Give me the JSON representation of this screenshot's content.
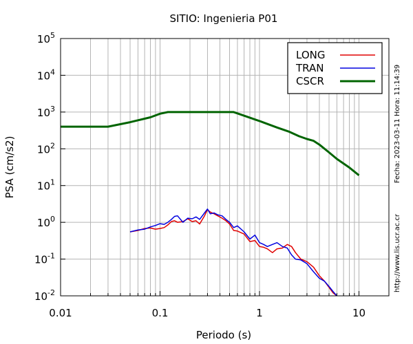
{
  "chart_data": {
    "type": "line",
    "title": "SITIO: Ingenieria P01",
    "xlabel": "Periodo (s)",
    "ylabel": "PSA (cm/s2)",
    "x_scale": "log",
    "y_scale": "log",
    "xlim": [
      0.01,
      20
    ],
    "ylim": [
      0.01,
      100000
    ],
    "grid": true,
    "legend_position": "top-right",
    "x_ticks": [
      {
        "value": 0.01,
        "label": "0.01"
      },
      {
        "value": 0.1,
        "label": "0.1"
      },
      {
        "value": 1,
        "label": "1"
      },
      {
        "value": 10,
        "label": "10"
      }
    ],
    "y_ticks": [
      {
        "value": 0.01,
        "base": "10",
        "exp": "-2"
      },
      {
        "value": 0.1,
        "base": "10",
        "exp": "-1"
      },
      {
        "value": 1,
        "base": "10",
        "exp": "0"
      },
      {
        "value": 10,
        "base": "10",
        "exp": "1"
      },
      {
        "value": 100,
        "base": "10",
        "exp": "2"
      },
      {
        "value": 1000,
        "base": "10",
        "exp": "3"
      },
      {
        "value": 10000,
        "base": "10",
        "exp": "4"
      },
      {
        "value": 100000,
        "base": "10",
        "exp": "5"
      }
    ],
    "side_annotations": [
      "Fecha: 2023-03-11  Hora: 11:14:39",
      "http://www.lis.ucr.ac.cr"
    ],
    "series": [
      {
        "name": "LONG",
        "color": "#e00000",
        "x": [
          0.05,
          0.06,
          0.07,
          0.08,
          0.09,
          0.1,
          0.11,
          0.12,
          0.13,
          0.14,
          0.15,
          0.17,
          0.19,
          0.21,
          0.23,
          0.25,
          0.28,
          0.3,
          0.32,
          0.35,
          0.38,
          0.42,
          0.46,
          0.5,
          0.55,
          0.6,
          0.7,
          0.8,
          0.9,
          1.0,
          1.1,
          1.2,
          1.35,
          1.5,
          1.7,
          1.9,
          2.1,
          2.3,
          2.6,
          3.0,
          3.5,
          4.0,
          4.5,
          5.0,
          5.5,
          6.0
        ],
        "y": [
          0.55,
          0.6,
          0.68,
          0.7,
          0.65,
          0.68,
          0.72,
          0.85,
          1.05,
          1.1,
          1.0,
          1.05,
          1.25,
          1.05,
          1.1,
          0.9,
          1.5,
          2.2,
          1.9,
          1.7,
          1.5,
          1.3,
          1.1,
          0.9,
          0.6,
          0.58,
          0.48,
          0.3,
          0.32,
          0.22,
          0.21,
          0.19,
          0.15,
          0.19,
          0.2,
          0.25,
          0.22,
          0.15,
          0.1,
          0.085,
          0.06,
          0.035,
          0.025,
          0.017,
          0.012,
          0.01
        ]
      },
      {
        "name": "TRAN",
        "color": "#0000e0",
        "x": [
          0.05,
          0.06,
          0.07,
          0.08,
          0.09,
          0.1,
          0.11,
          0.12,
          0.13,
          0.14,
          0.15,
          0.17,
          0.19,
          0.21,
          0.23,
          0.25,
          0.28,
          0.3,
          0.32,
          0.35,
          0.38,
          0.42,
          0.46,
          0.5,
          0.55,
          0.6,
          0.7,
          0.8,
          0.9,
          1.0,
          1.1,
          1.2,
          1.35,
          1.5,
          1.7,
          1.9,
          2.1,
          2.3,
          2.6,
          3.0,
          3.5,
          4.0,
          4.5,
          5.0,
          5.5,
          6.0
        ],
        "y": [
          0.55,
          0.62,
          0.65,
          0.75,
          0.82,
          0.92,
          0.88,
          1.0,
          1.2,
          1.45,
          1.5,
          1.0,
          1.3,
          1.25,
          1.4,
          1.2,
          1.8,
          2.3,
          1.7,
          1.8,
          1.6,
          1.5,
          1.2,
          1.0,
          0.72,
          0.8,
          0.55,
          0.35,
          0.45,
          0.28,
          0.25,
          0.22,
          0.25,
          0.28,
          0.22,
          0.2,
          0.13,
          0.1,
          0.095,
          0.075,
          0.045,
          0.03,
          0.025,
          0.018,
          0.013,
          0.01
        ]
      },
      {
        "name": "CSCR",
        "color": "#006400",
        "x": [
          0.01,
          0.03,
          0.05,
          0.08,
          0.1,
          0.12,
          0.2,
          0.3,
          0.55,
          0.8,
          1.0,
          1.5,
          2.0,
          2.5,
          3.0,
          3.5,
          4.0,
          5.0,
          6.0,
          8.0,
          10.0
        ],
        "y": [
          400,
          400,
          530,
          720,
          900,
          1000,
          1000,
          1000,
          1000,
          700,
          570,
          380,
          290,
          220,
          185,
          165,
          130,
          80,
          53,
          31,
          19
        ]
      }
    ]
  }
}
